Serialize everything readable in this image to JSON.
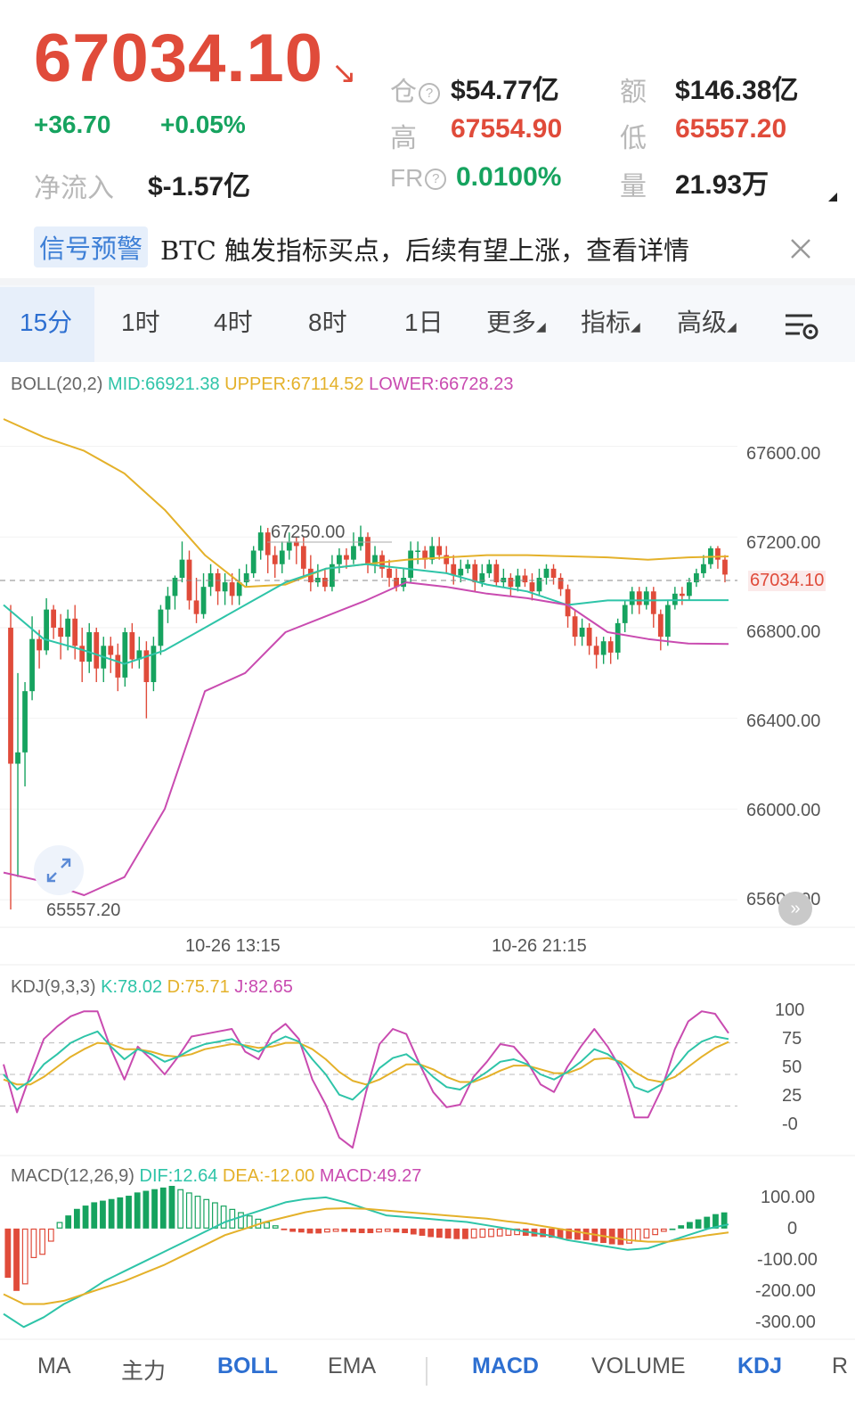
{
  "header": {
    "price": "67034.10",
    "trend_icon": "down-right-arrow-icon",
    "change": "+36.70",
    "change_pct": "+0.05%",
    "net_inflow_label": "净流入",
    "net_inflow_value": "$-1.57亿",
    "open_interest_label": "仓",
    "open_interest_value": "$54.77亿",
    "turnover_label": "额",
    "turnover_value": "$146.38亿",
    "high_label": "高",
    "high_value": "67554.90",
    "low_label": "低",
    "low_value": "65557.20",
    "fr_label": "FR",
    "fr_value": "0.0100%",
    "volume_label": "量",
    "volume_value": "21.93万",
    "help_icon": "question-circle-icon"
  },
  "signal": {
    "tag": "信号预警",
    "text": "BTC 触发指标买点，后续有望上涨，查看详情",
    "close_icon": "close-icon"
  },
  "timeframes": {
    "items": [
      "15分",
      "1时",
      "4时",
      "8时",
      "1日",
      "更多",
      "指标",
      "高级"
    ],
    "active": "15分",
    "settings_icon": "chart-settings-icon"
  },
  "indicators": {
    "boll": {
      "label": "BOLL(20,2)",
      "mid": "MID:66921.38",
      "upper": "UPPER:67114.52",
      "lower": "LOWER:66728.23"
    },
    "kdj": {
      "label": "KDJ(9,3,3)",
      "k": "K:78.02",
      "d": "D:75.71",
      "j": "J:82.65"
    },
    "macd": {
      "label": "MACD(12,26,9)",
      "dif": "DIF:12.64",
      "dea": "DEA:-12.00",
      "macd": "MACD:49.27"
    }
  },
  "bottom_tabs": {
    "items": [
      "MA",
      "主力",
      "BOLL",
      "EMA",
      "MACD",
      "VOLUME",
      "KDJ",
      "R"
    ],
    "active": [
      "BOLL",
      "MACD",
      "KDJ"
    ]
  },
  "colors": {
    "up": "#16a35f",
    "down": "#e04b3a",
    "upper": "#e4b12a",
    "mid": "#2ec4a8",
    "lower": "#c94bb0",
    "k": "#2ec4a8",
    "d": "#e4b12a",
    "j": "#c94bb0",
    "accent": "#2d6fd1"
  },
  "chart_data": [
    {
      "type": "candlestick",
      "x_ticks": [
        "10-26 13:15",
        "10-26 21:15"
      ],
      "y_ticks": [
        "67600.00",
        "67200.00",
        "66400.00",
        "66000.00",
        "65600.00"
      ],
      "ylim": [
        65557.2,
        67600
      ],
      "current_price": "67034.10",
      "high_marker": "67250.00",
      "low_marker": "65557.20",
      "candles": [
        [
          66800,
          66200,
          66900,
          65557.2
        ],
        [
          66200,
          66250,
          66600,
          65700
        ],
        [
          66250,
          66520,
          66560,
          66100
        ],
        [
          66520,
          66750,
          66850,
          66480
        ],
        [
          66750,
          66700,
          66790,
          66620
        ],
        [
          66700,
          66880,
          66930,
          66680
        ],
        [
          66880,
          66800,
          66900,
          66750
        ],
        [
          66800,
          66760,
          66860,
          66660
        ],
        [
          66760,
          66840,
          66880,
          66700
        ],
        [
          66840,
          66720,
          66900,
          66660
        ],
        [
          66720,
          66650,
          66800,
          66560
        ],
        [
          66650,
          66780,
          66820,
          66600
        ],
        [
          66780,
          66620,
          66800,
          66560
        ],
        [
          66620,
          66720,
          66760,
          66560
        ],
        [
          66720,
          66680,
          66760,
          66600
        ],
        [
          66680,
          66580,
          66730,
          66520
        ],
        [
          66580,
          66780,
          66800,
          66540
        ],
        [
          66780,
          66660,
          66820,
          66620
        ],
        [
          66660,
          66700,
          66760,
          66620
        ],
        [
          66700,
          66560,
          66740,
          66400
        ],
        [
          66560,
          66720,
          66760,
          66520
        ],
        [
          66720,
          66880,
          66900,
          66680
        ],
        [
          66880,
          66940,
          66980,
          66820
        ],
        [
          66940,
          67020,
          67030,
          66880
        ],
        [
          67020,
          67100,
          67180,
          67000
        ],
        [
          67100,
          66920,
          67140,
          66880
        ],
        [
          66920,
          66860,
          67020,
          66820
        ],
        [
          66860,
          66980,
          67040,
          66840
        ],
        [
          66980,
          67040,
          67080,
          66940
        ],
        [
          67040,
          66960,
          67060,
          66900
        ],
        [
          66960,
          67000,
          67040,
          66900
        ],
        [
          67000,
          66940,
          67040,
          66900
        ],
        [
          66940,
          67000,
          67060,
          66900
        ],
        [
          67000,
          67040,
          67080,
          66980
        ],
        [
          67040,
          67140,
          67160,
          67020
        ],
        [
          67140,
          67220,
          67250,
          67100
        ],
        [
          67220,
          67120,
          67240,
          67040
        ],
        [
          67120,
          67080,
          67160,
          67020
        ],
        [
          67080,
          67140,
          67180,
          67040
        ],
        [
          67140,
          67180,
          67220,
          67100
        ],
        [
          67180,
          67160,
          67200,
          67080
        ],
        [
          67160,
          67060,
          67200,
          67020
        ],
        [
          67060,
          67000,
          67120,
          66960
        ],
        [
          67000,
          67020,
          67080,
          66980
        ],
        [
          67020,
          66980,
          67060,
          66960
        ],
        [
          66980,
          67080,
          67120,
          66960
        ],
        [
          67080,
          67120,
          67150,
          67040
        ],
        [
          67120,
          67100,
          67150,
          67060
        ],
        [
          67100,
          67160,
          67220,
          67080
        ],
        [
          67160,
          67200,
          67250,
          67140
        ],
        [
          67200,
          67080,
          67220,
          67040
        ],
        [
          67080,
          67120,
          67160,
          67040
        ],
        [
          67120,
          67060,
          67140,
          67020
        ],
        [
          67060,
          67020,
          67100,
          66980
        ],
        [
          67020,
          66980,
          67060,
          66960
        ],
        [
          66980,
          67020,
          67060,
          66960
        ],
        [
          67020,
          67140,
          67180,
          67000
        ],
        [
          67140,
          67140,
          67180,
          67080
        ],
        [
          67140,
          67100,
          67160,
          67060
        ],
        [
          67100,
          67160,
          67200,
          67080
        ],
        [
          67160,
          67120,
          67200,
          67100
        ],
        [
          67120,
          67080,
          67160,
          67040
        ],
        [
          67080,
          67030,
          67120,
          66990
        ],
        [
          67030,
          67060,
          67100,
          67000
        ],
        [
          67060,
          67080,
          67100,
          67040
        ],
        [
          67080,
          67000,
          67100,
          66960
        ],
        [
          67000,
          67040,
          67080,
          66980
        ],
        [
          67040,
          67080,
          67100,
          67020
        ],
        [
          67080,
          67000,
          67100,
          66980
        ],
        [
          67000,
          67020,
          67060,
          66980
        ],
        [
          67020,
          66980,
          67040,
          66940
        ],
        [
          66980,
          67030,
          67060,
          66960
        ],
        [
          67030,
          67000,
          67060,
          66980
        ],
        [
          67000,
          66960,
          67040,
          66920
        ],
        [
          66960,
          67020,
          67060,
          66940
        ],
        [
          67020,
          67060,
          67080,
          66990
        ],
        [
          67060,
          67020,
          67080,
          66990
        ],
        [
          67020,
          66970,
          67040,
          66940
        ],
        [
          66970,
          66850,
          66990,
          66800
        ],
        [
          66850,
          66760,
          66880,
          66720
        ],
        [
          66760,
          66800,
          66840,
          66720
        ],
        [
          66800,
          66720,
          66820,
          66680
        ],
        [
          66720,
          66680,
          66760,
          66620
        ],
        [
          66680,
          66740,
          66760,
          66640
        ],
        [
          66740,
          66690,
          66760,
          66640
        ],
        [
          66690,
          66820,
          66840,
          66660
        ],
        [
          66820,
          66900,
          66920,
          66780
        ],
        [
          66900,
          66960,
          66980,
          66860
        ],
        [
          66960,
          66900,
          66980,
          66860
        ],
        [
          66900,
          66960,
          66980,
          66880
        ],
        [
          66960,
          66860,
          66980,
          66800
        ],
        [
          66860,
          66760,
          66880,
          66700
        ],
        [
          66760,
          66900,
          66920,
          66720
        ],
        [
          66900,
          66950,
          66980,
          66880
        ],
        [
          66950,
          66940,
          66980,
          66900
        ],
        [
          66940,
          67000,
          67020,
          66920
        ],
        [
          67000,
          67040,
          67060,
          66980
        ],
        [
          67040,
          67080,
          67120,
          67020
        ],
        [
          67080,
          67150,
          67160,
          67060
        ],
        [
          67150,
          67100,
          67160,
          67060
        ],
        [
          67100,
          67034.1,
          67120,
          67000
        ]
      ],
      "boll_upper": [
        67720,
        67640,
        67580,
        67480,
        67320,
        67120,
        66980,
        66990,
        67060,
        67080,
        67100,
        67110,
        67120,
        67120,
        67115,
        67110,
        67100,
        67110,
        67114.52
      ],
      "boll_mid": [
        66900,
        66750,
        66700,
        66640,
        66700,
        66800,
        66900,
        67000,
        67060,
        67080,
        67060,
        67040,
        66990,
        66960,
        66900,
        66920,
        66920,
        66921.38,
        66921.38
      ],
      "boll_lower": [
        65720,
        65680,
        65620,
        65700,
        66000,
        66520,
        66600,
        66780,
        66850,
        66920,
        67000,
        66980,
        66950,
        66930,
        66900,
        66780,
        66750,
        66730,
        66728.23
      ]
    },
    {
      "type": "line",
      "name": "KDJ",
      "y_ticks": [
        "100",
        "75",
        "50",
        "25",
        "-0"
      ],
      "ylim": [
        -10,
        110
      ],
      "K": [
        50,
        38,
        45,
        58,
        66,
        75,
        80,
        84,
        72,
        62,
        70,
        66,
        60,
        64,
        70,
        74,
        76,
        78,
        72,
        68,
        75,
        80,
        76,
        62,
        50,
        34,
        30,
        40,
        55,
        63,
        66,
        58,
        48,
        40,
        38,
        45,
        52,
        60,
        62,
        58,
        50,
        46,
        52,
        60,
        70,
        66,
        58,
        40,
        36,
        42,
        55,
        68,
        76,
        80,
        78.02
      ],
      "D": [
        46,
        42,
        42,
        48,
        56,
        64,
        70,
        75,
        74,
        70,
        70,
        68,
        65,
        64,
        66,
        70,
        72,
        74,
        73,
        71,
        72,
        75,
        75,
        70,
        62,
        52,
        45,
        42,
        46,
        52,
        58,
        58,
        54,
        48,
        44,
        44,
        48,
        53,
        57,
        57,
        54,
        51,
        51,
        55,
        62,
        63,
        60,
        52,
        46,
        44,
        48,
        56,
        64,
        71,
        75.71
      ],
      "J": [
        58,
        20,
        50,
        78,
        88,
        96,
        100,
        100,
        70,
        46,
        72,
        62,
        50,
        64,
        80,
        82,
        84,
        86,
        68,
        62,
        82,
        90,
        78,
        46,
        26,
        0,
        -8,
        36,
        74,
        86,
        82,
        58,
        36,
        24,
        26,
        48,
        60,
        74,
        72,
        60,
        42,
        36,
        56,
        72,
        86,
        72,
        54,
        16,
        16,
        38,
        70,
        92,
        100,
        98,
        82.65
      ]
    },
    {
      "type": "bar",
      "name": "MACD",
      "y_ticks": [
        "100.00",
        "0",
        "-100.00",
        "-200.00",
        "-300.00"
      ],
      "ylim": [
        -310,
        130
      ],
      "hist": [
        -150,
        -190,
        -170,
        -90,
        -80,
        -40,
        20,
        40,
        60,
        70,
        80,
        85,
        90,
        95,
        100,
        110,
        115,
        120,
        125,
        130,
        120,
        110,
        100,
        90,
        80,
        70,
        60,
        50,
        40,
        30,
        20,
        10,
        -5,
        -10,
        -12,
        -15,
        -15,
        -12,
        -10,
        -10,
        -12,
        -14,
        -14,
        -12,
        -10,
        -12,
        -14,
        -18,
        -22,
        -26,
        -28,
        -30,
        -32,
        -32,
        -30,
        -28,
        -26,
        -24,
        -22,
        -20,
        -22,
        -24,
        -26,
        -28,
        -30,
        -32,
        -34,
        -36,
        -40,
        -44,
        -48,
        -50,
        -46,
        -40,
        -30,
        -20,
        -10,
        0,
        10,
        20,
        28,
        36,
        44,
        49.27
      ],
      "dif": [
        -260,
        -300,
        -270,
        -230,
        -200,
        -160,
        -130,
        -100,
        -70,
        -40,
        -10,
        20,
        40,
        60,
        80,
        90,
        95,
        80,
        60,
        40,
        35,
        30,
        25,
        20,
        10,
        0,
        -10,
        -20,
        -35,
        -45,
        -55,
        -65,
        -60,
        -40,
        -20,
        0,
        12.64
      ],
      "dea": [
        -200,
        -230,
        -230,
        -220,
        -200,
        -180,
        -160,
        -135,
        -110,
        -80,
        -50,
        -20,
        0,
        20,
        35,
        50,
        60,
        62,
        60,
        55,
        50,
        45,
        40,
        35,
        30,
        22,
        15,
        5,
        -5,
        -15,
        -25,
        -35,
        -40,
        -40,
        -30,
        -20,
        -12.0
      ]
    }
  ]
}
